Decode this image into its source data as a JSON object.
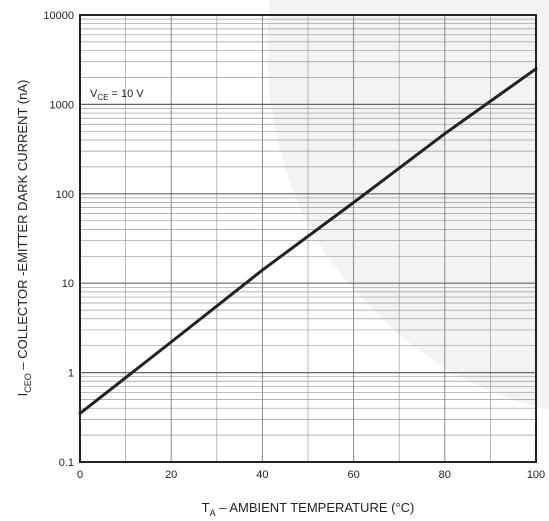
{
  "chart_data": {
    "type": "line",
    "xlabel": {
      "main": "T",
      "sub": "A",
      "rest": " – AMBIENT TEMPERATURE (°C)"
    },
    "ylabel": {
      "main": "I",
      "sub": "CEO",
      "rest": " – COLLECTOR -EMITTER DARK CURRENT (nA)"
    },
    "xlim": [
      0,
      100
    ],
    "ylim": [
      0.1,
      10000
    ],
    "yscale": "log",
    "grid": true,
    "x_ticks": [
      0,
      20,
      40,
      60,
      80,
      100
    ],
    "x_tick_labels": [
      "0",
      "20",
      "40",
      "60",
      "80",
      "100"
    ],
    "y_ticks": [
      0.1,
      1,
      10,
      100,
      1000,
      10000
    ],
    "y_tick_labels": [
      "0.1",
      "1",
      "10",
      "100",
      "1000",
      "10000"
    ],
    "annotation": {
      "main": "V",
      "sub": "CE",
      "rest": " = 10 V"
    },
    "series": [
      {
        "x": [
          0,
          20,
          40,
          60,
          80,
          100
        ],
        "y": [
          0.35,
          2.2,
          14,
          80,
          470,
          2500
        ]
      }
    ],
    "colors": {
      "line": "#222222",
      "grid": "#9a9a9a",
      "frame": "#222222"
    }
  }
}
